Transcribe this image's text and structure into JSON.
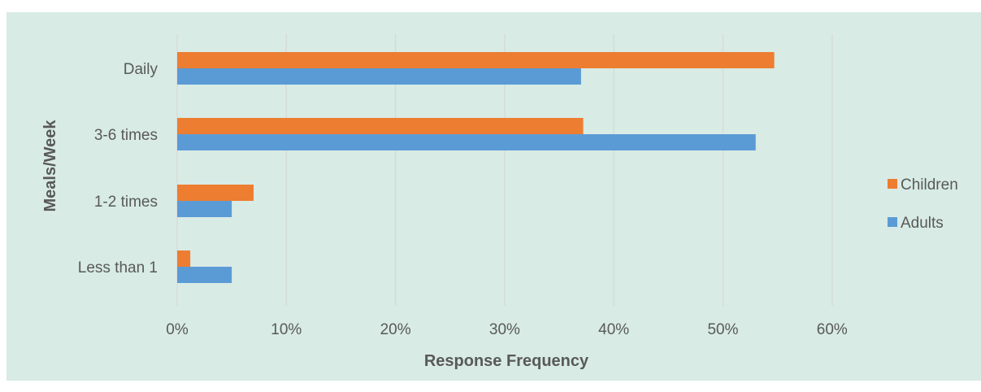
{
  "chart_data": {
    "type": "bar",
    "orientation": "horizontal",
    "categories": [
      "Daily",
      "3-6 times",
      "1-2 times",
      "Less than 1"
    ],
    "series": [
      {
        "name": "Children",
        "color": "#ed7d31",
        "values": [
          54.7,
          37.2,
          7.0,
          1.2
        ]
      },
      {
        "name": "Adults",
        "color": "#5b9bd5",
        "values": [
          37.0,
          53.0,
          5.0,
          5.0
        ]
      }
    ],
    "xlabel": "Response Frequency",
    "ylabel": "Meals/Week",
    "xlim": [
      0,
      60
    ],
    "xticks": [
      "0%",
      "10%",
      "20%",
      "30%",
      "40%",
      "50%",
      "60%"
    ],
    "grid": true,
    "legend_position": "right",
    "background_color": "#d8ebe5",
    "gridline_color": "#d9d9d9"
  }
}
